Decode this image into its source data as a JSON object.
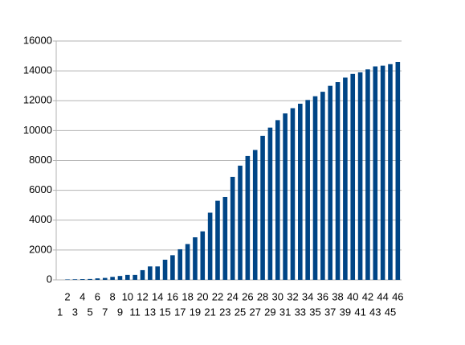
{
  "chart_data": {
    "type": "bar",
    "categories": [
      "1",
      "2",
      "3",
      "4",
      "5",
      "6",
      "7",
      "8",
      "9",
      "10",
      "11",
      "12",
      "13",
      "14",
      "15",
      "16",
      "17",
      "18",
      "19",
      "20",
      "21",
      "22",
      "23",
      "24",
      "25",
      "26",
      "27",
      "28",
      "29",
      "30",
      "31",
      "32",
      "33",
      "34",
      "35",
      "36",
      "37",
      "38",
      "39",
      "40",
      "41",
      "42",
      "43",
      "44",
      "45",
      "46"
    ],
    "values": [
      0,
      30,
      40,
      50,
      60,
      100,
      130,
      200,
      260,
      330,
      330,
      650,
      900,
      900,
      1350,
      1650,
      2050,
      2400,
      2850,
      3250,
      4500,
      5300,
      5550,
      6900,
      7650,
      8300,
      8700,
      9650,
      10200,
      10700,
      11150,
      11500,
      11800,
      12050,
      12300,
      12600,
      13000,
      13250,
      13550,
      13800,
      13900,
      14100,
      14300,
      14350,
      14450,
      14600
    ],
    "color": "#004586",
    "ylim": [
      0,
      16000
    ],
    "yticks": [
      0,
      2000,
      4000,
      6000,
      8000,
      10000,
      12000,
      14000,
      16000
    ],
    "grid": true
  }
}
